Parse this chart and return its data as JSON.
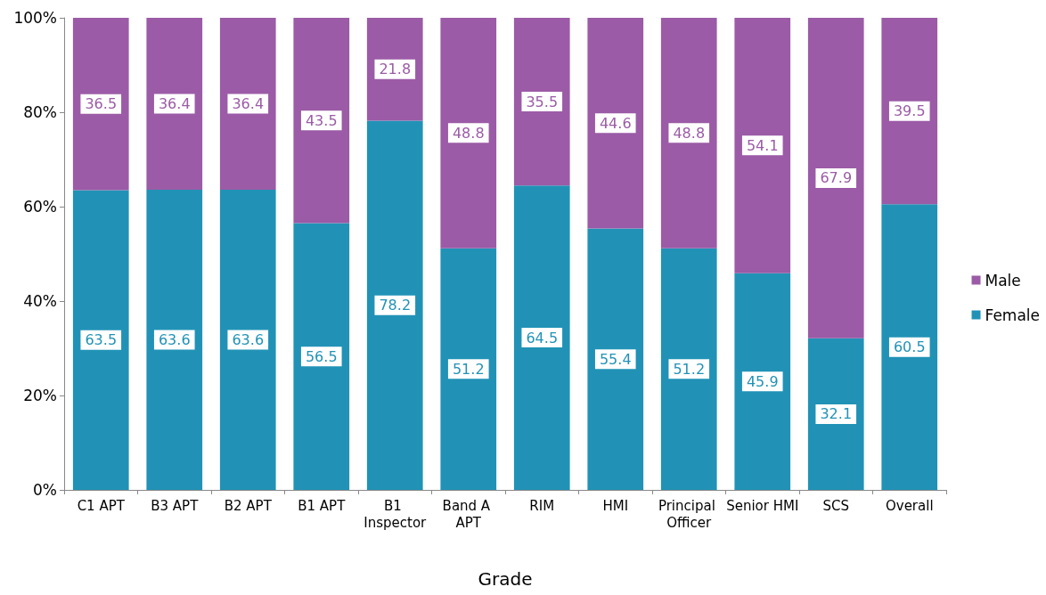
{
  "chart_data": {
    "type": "bar",
    "stacked": true,
    "xlabel": "Grade",
    "categories": [
      "C1 APT",
      "B3 APT",
      "B2 APT",
      "B1 APT",
      "B1 Inspector",
      "Band A APT",
      "RIM",
      "HMI",
      "Principal Officer",
      "Senior HMI",
      "SCS",
      "Overall"
    ],
    "series": [
      {
        "name": "Female",
        "color": "#2192b6",
        "values": [
          63.5,
          63.6,
          63.6,
          56.5,
          78.2,
          51.2,
          64.5,
          55.4,
          51.2,
          45.9,
          32.1,
          60.5
        ]
      },
      {
        "name": "Male",
        "color": "#9b5ba6",
        "values": [
          36.5,
          36.4,
          36.4,
          43.5,
          21.8,
          48.8,
          35.5,
          44.6,
          48.8,
          54.1,
          67.9,
          39.5
        ]
      }
    ],
    "ylim": [
      0,
      100
    ],
    "yticks": [
      {
        "value": 0,
        "label": "0%"
      },
      {
        "value": 20,
        "label": "20%"
      },
      {
        "value": 40,
        "label": "40%"
      },
      {
        "value": 60,
        "label": "60%"
      },
      {
        "value": 80,
        "label": "80%"
      },
      {
        "value": 100,
        "label": "100%"
      }
    ],
    "data_labels": true,
    "legend": "right",
    "grid": false
  }
}
